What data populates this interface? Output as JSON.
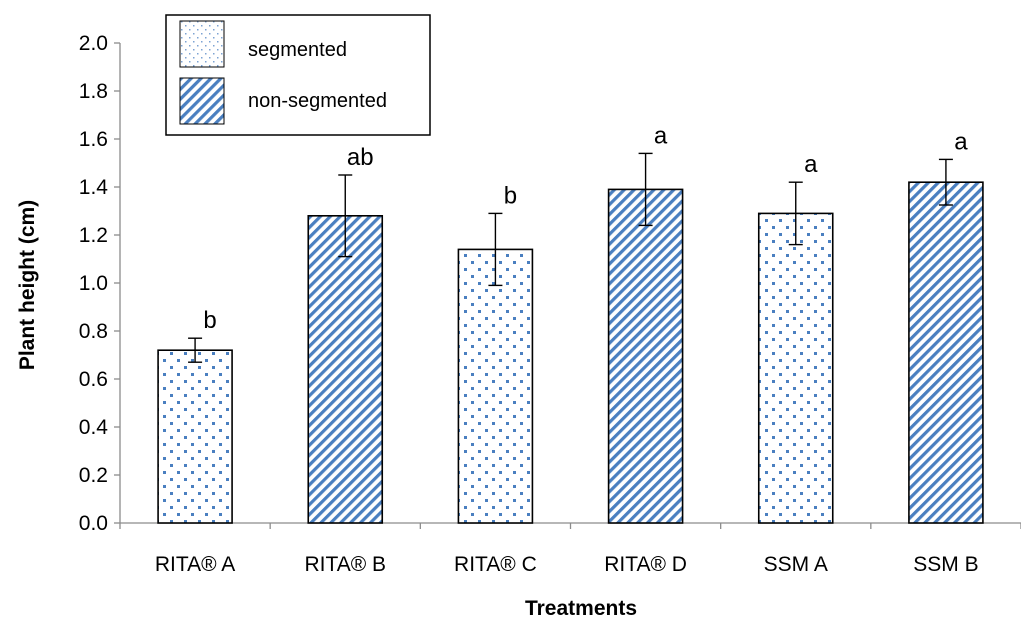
{
  "chart_data": {
    "type": "bar",
    "title": "",
    "xlabel": "Treatments",
    "ylabel": "Plant height (cm)",
    "ylim": [
      0,
      2.0
    ],
    "ytick_step": 0.2,
    "yticks": [
      "0.0",
      "0.2",
      "0.4",
      "0.6",
      "0.8",
      "1.0",
      "1.2",
      "1.4",
      "1.6",
      "1.8",
      "2.0"
    ],
    "grid": false,
    "legend_position": "top-left",
    "categories": [
      "RITA® A",
      "RITA® B",
      "RITA® C",
      "RITA® D",
      "SSM A",
      "SSM B"
    ],
    "values": [
      0.72,
      1.28,
      1.14,
      1.39,
      1.29,
      1.42
    ],
    "errors": [
      0.05,
      0.17,
      0.15,
      0.15,
      0.13,
      0.095
    ],
    "groups": [
      "segmented",
      "non-segmented",
      "segmented",
      "non-segmented",
      "segmented",
      "non-segmented"
    ],
    "significance": [
      "b",
      "ab",
      "b",
      "a",
      "a",
      "a"
    ],
    "legend": [
      {
        "key": "segmented",
        "label": "segmented",
        "pattern": "dots"
      },
      {
        "key": "non-segmented",
        "label": "non-segmented",
        "pattern": "diagonal-hatch"
      }
    ],
    "colors": {
      "pattern": "#4a7fc0",
      "bar_outline": "#000000",
      "axis": "#8c8c8c"
    }
  }
}
